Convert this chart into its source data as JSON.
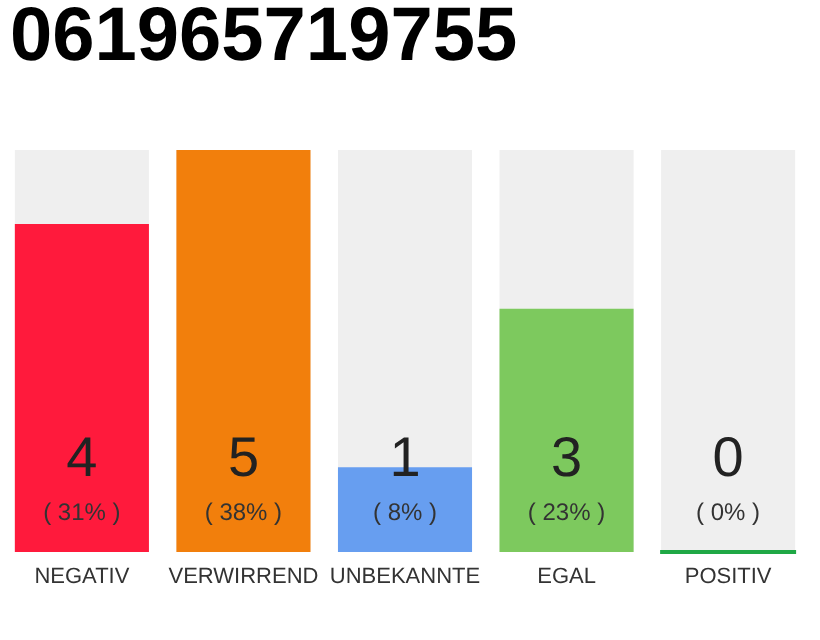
{
  "chart_data": {
    "type": "bar",
    "title": "061965719755",
    "categories": [
      "NEGATIV",
      "VERWIRREND",
      "UNBEKANNTE",
      "EGAL",
      "POSITIV"
    ],
    "values": [
      31,
      38,
      8,
      23,
      0
    ],
    "colors": [
      "#ff1a3c",
      "#f27f0c",
      "#679ef0",
      "#7dc95e",
      "#1fa845"
    ],
    "value_labels": [
      "( 31% )",
      "( 38% )",
      "( 8% )",
      "( 23% )",
      "( 0% )"
    ],
    "annotations": [
      "4",
      "5",
      "1",
      "3",
      "0"
    ]
  }
}
